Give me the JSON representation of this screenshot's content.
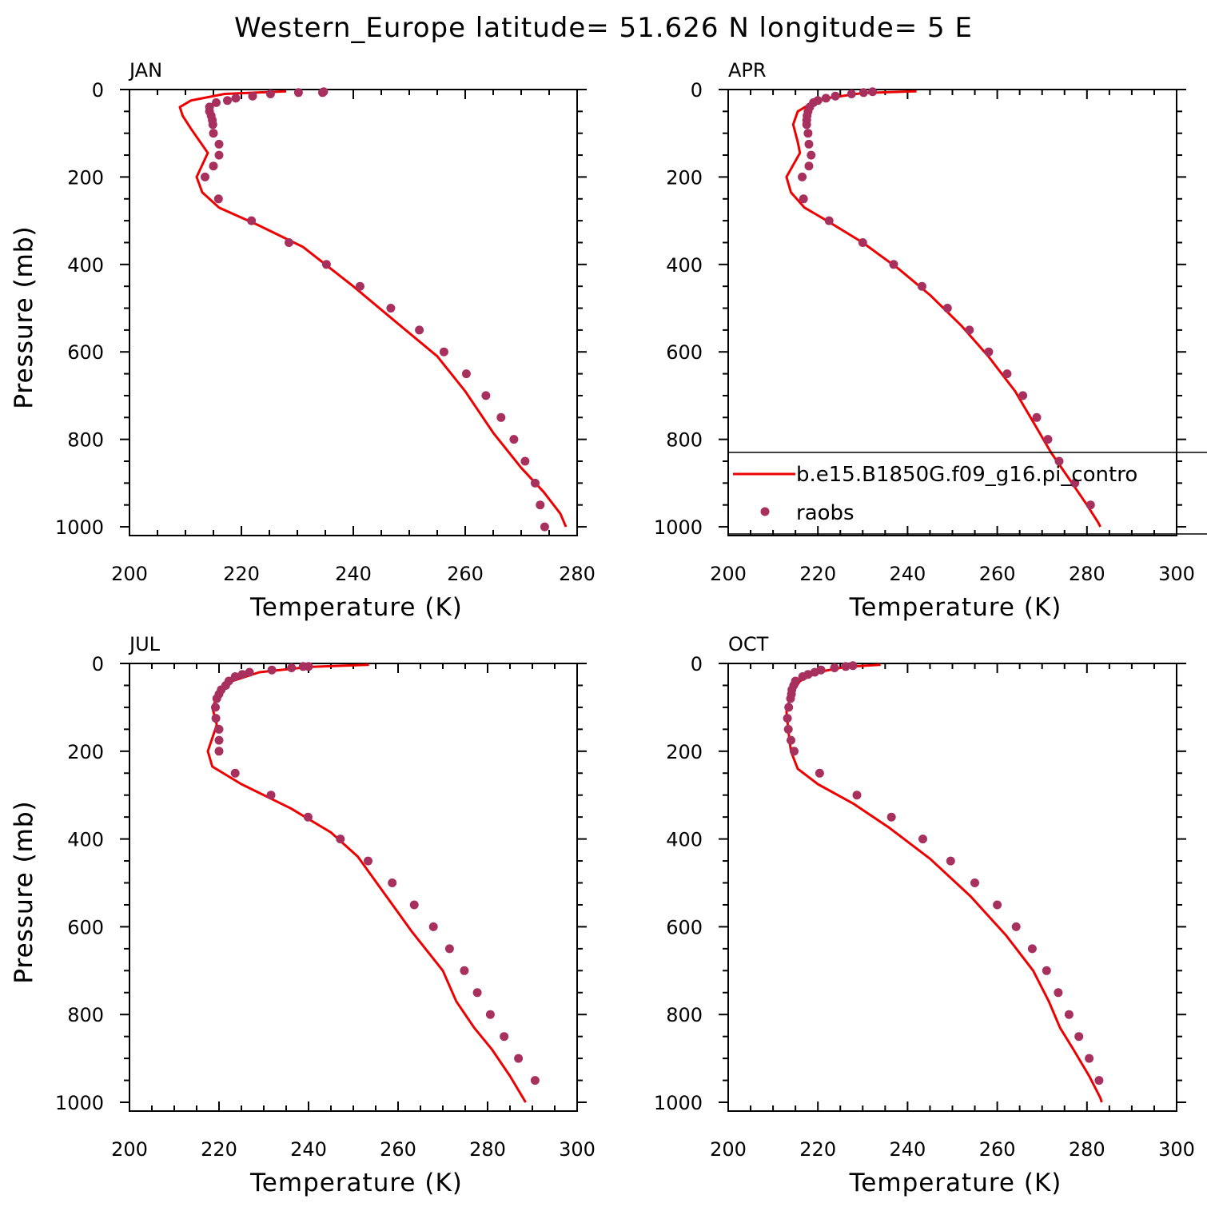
{
  "title": "Western_Europe  latitude= 51.626 N longitude= 5 E",
  "colors": {
    "model_line": "#ee0000",
    "raobs_marker": "#a8305e",
    "axis": "#000000"
  },
  "legend": {
    "entries": [
      {
        "label": "b.e15.B1850G.f09_g16.pi_contro",
        "style": "line",
        "color": "#ee0000"
      },
      {
        "label": "raobs",
        "style": "marker",
        "color": "#a8305e"
      }
    ]
  },
  "chart_data": [
    {
      "type": "line",
      "panel_title": "JAN",
      "xlabel": "Temperature (K)",
      "ylabel": "Pressure (mb)",
      "xlim": [
        200,
        280
      ],
      "ylim": [
        1020,
        0
      ],
      "y_inverted": true,
      "xticks": [
        200,
        220,
        240,
        260,
        280
      ],
      "yticks": [
        0,
        200,
        400,
        600,
        800,
        1000
      ],
      "series": [
        {
          "name": "b.e15.B1850G.f09_g16.pi_contro",
          "style": "line",
          "points": [
            [
              228,
              4
            ],
            [
              217,
              10
            ],
            [
              211,
              25
            ],
            [
              209,
              40
            ],
            [
              209.5,
              60
            ],
            [
              211,
              90
            ],
            [
              214,
              145
            ],
            [
              212,
              200
            ],
            [
              213,
              235
            ],
            [
              216,
              270
            ],
            [
              223,
              310
            ],
            [
              231,
              360
            ],
            [
              240,
              450
            ],
            [
              247,
              525
            ],
            [
              255,
              610
            ],
            [
              260,
              690
            ],
            [
              265,
              785
            ],
            [
              270,
              865
            ],
            [
              274,
              920
            ],
            [
              277,
              970
            ],
            [
              278,
              1000
            ]
          ]
        },
        {
          "name": "raobs",
          "style": "markers",
          "points": [
            [
              234.7,
              5
            ],
            [
              234.5,
              7
            ],
            [
              230.2,
              7
            ],
            [
              225.2,
              10
            ],
            [
              222,
              15
            ],
            [
              219,
              20
            ],
            [
              217.5,
              25
            ],
            [
              215.5,
              30
            ],
            [
              214.3,
              40
            ],
            [
              214.3,
              50
            ],
            [
              214.6,
              60
            ],
            [
              214.8,
              70
            ],
            [
              214.9,
              80
            ],
            [
              215,
              100
            ],
            [
              216,
              125
            ],
            [
              216,
              150
            ],
            [
              215,
              175
            ],
            [
              213.5,
              200
            ],
            [
              215.9,
              250
            ],
            [
              221.8,
              300
            ],
            [
              228.5,
              350
            ],
            [
              235.2,
              400
            ],
            [
              241.2,
              450
            ],
            [
              246.7,
              500
            ],
            [
              251.8,
              550
            ],
            [
              256.2,
              600
            ],
            [
              260.2,
              650
            ],
            [
              263.7,
              700
            ],
            [
              266.4,
              750
            ],
            [
              268.7,
              800
            ],
            [
              270.7,
              850
            ],
            [
              272.5,
              900
            ],
            [
              273.4,
              950
            ],
            [
              274.2,
              1000
            ]
          ]
        }
      ]
    },
    {
      "type": "line",
      "panel_title": "APR",
      "xlabel": "Temperature (K)",
      "ylabel": "Pressure (mb)",
      "xlim": [
        200,
        300
      ],
      "ylim": [
        1020,
        0
      ],
      "y_inverted": true,
      "xticks": [
        200,
        220,
        240,
        260,
        280,
        300
      ],
      "yticks": [
        0,
        200,
        400,
        600,
        800,
        1000
      ],
      "series": [
        {
          "name": "b.e15.B1850G.f09_g16.pi_contro",
          "style": "line",
          "points": [
            [
              242,
              4
            ],
            [
              230,
              8
            ],
            [
              222,
              20
            ],
            [
              218,
              35
            ],
            [
              215.5,
              50
            ],
            [
              214.5,
              80
            ],
            [
              215.5,
              120
            ],
            [
              216,
              145
            ],
            [
              213,
              200
            ],
            [
              214,
              235
            ],
            [
              217,
              270
            ],
            [
              222,
              300
            ],
            [
              230,
              350
            ],
            [
              238,
              410
            ],
            [
              245,
              470
            ],
            [
              252,
              540
            ],
            [
              258,
              610
            ],
            [
              264,
              690
            ],
            [
              268,
              760
            ],
            [
              272,
              830
            ],
            [
              276,
              890
            ],
            [
              280,
              950
            ],
            [
              282.5,
              990
            ],
            [
              283,
              1000
            ]
          ]
        },
        {
          "name": "raobs",
          "style": "markers",
          "points": [
            [
              232.2,
              5
            ],
            [
              230.2,
              7
            ],
            [
              227.5,
              10
            ],
            [
              223.9,
              15
            ],
            [
              221.8,
              20
            ],
            [
              220,
              25
            ],
            [
              219,
              30
            ],
            [
              218.2,
              40
            ],
            [
              217.8,
              50
            ],
            [
              217.6,
              60
            ],
            [
              217.5,
              70
            ],
            [
              217.5,
              80
            ],
            [
              217.8,
              100
            ],
            [
              218,
              125
            ],
            [
              218.5,
              150
            ],
            [
              218,
              175
            ],
            [
              216.5,
              200
            ],
            [
              216.8,
              250
            ],
            [
              222.5,
              300
            ],
            [
              230,
              350
            ],
            [
              236.9,
              400
            ],
            [
              243.2,
              450
            ],
            [
              248.9,
              500
            ],
            [
              253.8,
              550
            ],
            [
              258.1,
              600
            ],
            [
              262.2,
              650
            ],
            [
              265.7,
              700
            ],
            [
              268.8,
              750
            ],
            [
              271.3,
              800
            ],
            [
              273.8,
              850
            ],
            [
              277.3,
              900
            ],
            [
              280.8,
              950
            ]
          ]
        }
      ]
    },
    {
      "type": "line",
      "panel_title": "JUL",
      "xlabel": "Temperature (K)",
      "ylabel": "Pressure (mb)",
      "xlim": [
        200,
        300
      ],
      "ylim": [
        1020,
        0
      ],
      "y_inverted": true,
      "xticks": [
        200,
        220,
        240,
        260,
        280,
        300
      ],
      "yticks": [
        0,
        200,
        400,
        600,
        800,
        1000
      ],
      "series": [
        {
          "name": "b.e15.B1850G.f09_g16.pi_contro",
          "style": "line",
          "points": [
            [
              253.5,
              3
            ],
            [
              240,
              8
            ],
            [
              229,
              20
            ],
            [
              223,
              40
            ],
            [
              220,
              70
            ],
            [
              218.5,
              100
            ],
            [
              219.5,
              140
            ],
            [
              217.5,
              200
            ],
            [
              218.5,
              235
            ],
            [
              225,
              275
            ],
            [
              236,
              330
            ],
            [
              245,
              385
            ],
            [
              251,
              440
            ],
            [
              257,
              525
            ],
            [
              263,
              610
            ],
            [
              270,
              700
            ],
            [
              273,
              770
            ],
            [
              277,
              830
            ],
            [
              281,
              880
            ],
            [
              285,
              940
            ],
            [
              288.5,
              1000
            ]
          ]
        },
        {
          "name": "raobs",
          "style": "markers",
          "points": [
            [
              240,
              7
            ],
            [
              238.8,
              7
            ],
            [
              236.2,
              10
            ],
            [
              231.8,
              15
            ],
            [
              226.8,
              20
            ],
            [
              225.2,
              25
            ],
            [
              223.6,
              30
            ],
            [
              222.2,
              40
            ],
            [
              221.5,
              50
            ],
            [
              220.5,
              60
            ],
            [
              220,
              70
            ],
            [
              219.5,
              80
            ],
            [
              219.2,
              100
            ],
            [
              219.3,
              125
            ],
            [
              220,
              150
            ],
            [
              220,
              175
            ],
            [
              220,
              200
            ],
            [
              223.6,
              250
            ],
            [
              231.6,
              300
            ],
            [
              239.9,
              350
            ],
            [
              247.1,
              400
            ],
            [
              253.3,
              450
            ],
            [
              258.7,
              500
            ],
            [
              263.6,
              550
            ],
            [
              267.9,
              600
            ],
            [
              271.5,
              650
            ],
            [
              274.8,
              700
            ],
            [
              277.7,
              750
            ],
            [
              280.6,
              800
            ],
            [
              283.7,
              850
            ],
            [
              286.9,
              900
            ],
            [
              290.6,
              950
            ]
          ]
        }
      ]
    },
    {
      "type": "line",
      "panel_title": "OCT",
      "xlabel": "Temperature (K)",
      "ylabel": "Pressure (mb)",
      "xlim": [
        200,
        300
      ],
      "ylim": [
        1020,
        0
      ],
      "y_inverted": true,
      "xticks": [
        200,
        220,
        240,
        260,
        280,
        300
      ],
      "yticks": [
        0,
        200,
        400,
        600,
        800,
        1000
      ],
      "series": [
        {
          "name": "b.e15.B1850G.f09_g16.pi_contro",
          "style": "line",
          "points": [
            [
              234,
              3
            ],
            [
              226,
              8
            ],
            [
              220,
              20
            ],
            [
              216,
              40
            ],
            [
              214,
              70
            ],
            [
              213,
              110
            ],
            [
              213.5,
              160
            ],
            [
              214,
              200
            ],
            [
              215.5,
              240
            ],
            [
              220,
              275
            ],
            [
              228,
              320
            ],
            [
              236,
              375
            ],
            [
              245,
              445
            ],
            [
              254,
              530
            ],
            [
              262,
              620
            ],
            [
              268,
              700
            ],
            [
              271.5,
              770
            ],
            [
              274,
              830
            ],
            [
              277,
              880
            ],
            [
              280.5,
              940
            ],
            [
              283,
              990
            ],
            [
              283.3,
              1000
            ]
          ]
        },
        {
          "name": "raobs",
          "style": "markers",
          "points": [
            [
              227.8,
              5
            ],
            [
              226.2,
              7
            ],
            [
              223.7,
              10
            ],
            [
              220.7,
              15
            ],
            [
              219.3,
              20
            ],
            [
              217.8,
              25
            ],
            [
              216.6,
              30
            ],
            [
              215,
              40
            ],
            [
              214.6,
              50
            ],
            [
              214.2,
              60
            ],
            [
              214.1,
              70
            ],
            [
              213.9,
              80
            ],
            [
              213.5,
              100
            ],
            [
              213.2,
              125
            ],
            [
              213.4,
              150
            ],
            [
              214,
              175
            ],
            [
              214.7,
              200
            ],
            [
              220.4,
              250
            ],
            [
              228.7,
              300
            ],
            [
              236.4,
              350
            ],
            [
              243.4,
              400
            ],
            [
              249.6,
              450
            ],
            [
              255,
              500
            ],
            [
              260,
              550
            ],
            [
              264.2,
              600
            ],
            [
              267.8,
              650
            ],
            [
              271,
              700
            ],
            [
              273.6,
              750
            ],
            [
              276,
              800
            ],
            [
              278.2,
              850
            ],
            [
              280.5,
              900
            ],
            [
              282.7,
              950
            ]
          ]
        }
      ]
    }
  ]
}
